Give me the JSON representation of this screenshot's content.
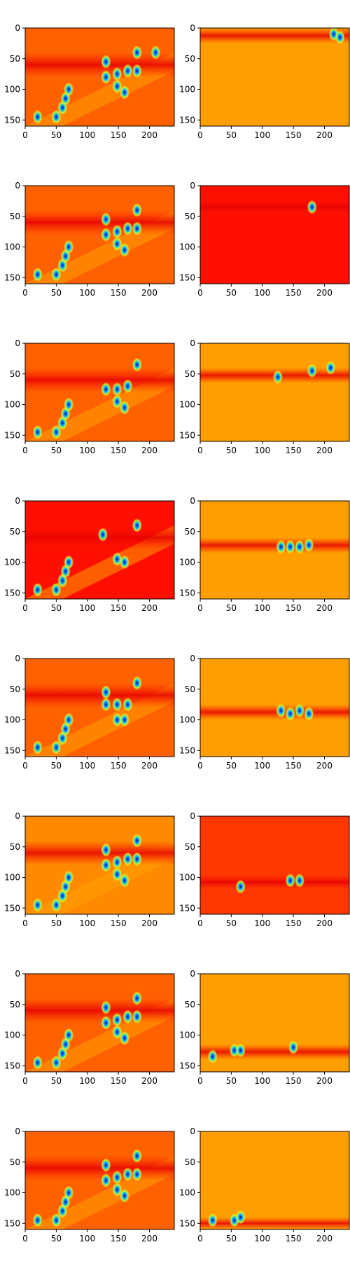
{
  "chart_data": {
    "type": "heatmap",
    "layout": {
      "rows": 8,
      "cols": 2
    },
    "colormap": "jet",
    "xlim": [
      0,
      240
    ],
    "ylim": [
      160,
      0
    ],
    "x_ticks": [
      0,
      50,
      100,
      150,
      200
    ],
    "y_ticks": [
      0,
      50,
      100,
      150
    ],
    "x_tick_labels": [
      "0",
      "50",
      "100",
      "150",
      "200"
    ],
    "y_tick_labels": [
      "0",
      "50",
      "100",
      "150"
    ],
    "grid": false,
    "panels": [
      {
        "row": 1,
        "col": 1,
        "background_level": 0.78,
        "band_y": [
          40,
          80
        ],
        "blobs": [
          [
            130,
            55
          ],
          [
            130,
            80
          ],
          [
            148,
            75
          ],
          [
            165,
            70
          ],
          [
            180,
            70
          ],
          [
            148,
            95
          ],
          [
            160,
            105
          ],
          [
            180,
            40
          ],
          [
            210,
            40
          ],
          [
            20,
            145
          ],
          [
            50,
            145
          ],
          [
            60,
            130
          ],
          [
            65,
            115
          ],
          [
            70,
            100
          ]
        ]
      },
      {
        "row": 1,
        "col": 2,
        "background_level": 0.72,
        "band_y": [
          0,
          25
        ],
        "blobs": [
          [
            215,
            10
          ],
          [
            225,
            15
          ]
        ]
      },
      {
        "row": 2,
        "col": 1,
        "background_level": 0.78,
        "band_y": [
          40,
          80
        ],
        "blobs": [
          [
            130,
            55
          ],
          [
            130,
            80
          ],
          [
            148,
            75
          ],
          [
            165,
            70
          ],
          [
            180,
            70
          ],
          [
            148,
            95
          ],
          [
            160,
            105
          ],
          [
            180,
            40
          ],
          [
            20,
            145
          ],
          [
            50,
            145
          ],
          [
            60,
            130
          ],
          [
            65,
            115
          ],
          [
            70,
            100
          ]
        ]
      },
      {
        "row": 2,
        "col": 2,
        "background_level": 0.86,
        "band_y": [
          20,
          50
        ],
        "blobs": [
          [
            180,
            35
          ]
        ]
      },
      {
        "row": 3,
        "col": 1,
        "background_level": 0.78,
        "band_y": [
          40,
          80
        ],
        "blobs": [
          [
            130,
            75
          ],
          [
            148,
            75
          ],
          [
            165,
            70
          ],
          [
            148,
            95
          ],
          [
            160,
            105
          ],
          [
            180,
            35
          ],
          [
            20,
            145
          ],
          [
            50,
            145
          ],
          [
            60,
            130
          ],
          [
            65,
            115
          ],
          [
            70,
            100
          ]
        ]
      },
      {
        "row": 3,
        "col": 2,
        "background_level": 0.72,
        "band_y": [
          40,
          65
        ],
        "blobs": [
          [
            125,
            55
          ],
          [
            180,
            45
          ],
          [
            210,
            40
          ]
        ]
      },
      {
        "row": 4,
        "col": 1,
        "background_level": 0.86,
        "band_y": [
          40,
          80
        ],
        "blobs": [
          [
            125,
            55
          ],
          [
            148,
            95
          ],
          [
            160,
            100
          ],
          [
            180,
            40
          ],
          [
            20,
            145
          ],
          [
            50,
            145
          ],
          [
            60,
            130
          ],
          [
            65,
            115
          ],
          [
            70,
            100
          ]
        ]
      },
      {
        "row": 4,
        "col": 2,
        "background_level": 0.72,
        "band_y": [
          60,
          85
        ],
        "blobs": [
          [
            130,
            75
          ],
          [
            145,
            75
          ],
          [
            160,
            75
          ],
          [
            175,
            72
          ]
        ]
      },
      {
        "row": 5,
        "col": 1,
        "background_level": 0.78,
        "band_y": [
          40,
          80
        ],
        "blobs": [
          [
            130,
            55
          ],
          [
            130,
            75
          ],
          [
            148,
            75
          ],
          [
            165,
            75
          ],
          [
            148,
            100
          ],
          [
            160,
            100
          ],
          [
            180,
            40
          ],
          [
            20,
            145
          ],
          [
            50,
            145
          ],
          [
            60,
            130
          ],
          [
            65,
            115
          ],
          [
            70,
            100
          ]
        ]
      },
      {
        "row": 5,
        "col": 2,
        "background_level": 0.72,
        "band_y": [
          75,
          100
        ],
        "blobs": [
          [
            130,
            85
          ],
          [
            145,
            90
          ],
          [
            160,
            85
          ],
          [
            175,
            90
          ]
        ]
      },
      {
        "row": 6,
        "col": 1,
        "background_level": 0.74,
        "band_y": [
          40,
          80
        ],
        "blobs": [
          [
            130,
            55
          ],
          [
            130,
            80
          ],
          [
            148,
            75
          ],
          [
            165,
            70
          ],
          [
            180,
            70
          ],
          [
            148,
            95
          ],
          [
            160,
            105
          ],
          [
            180,
            40
          ],
          [
            20,
            145
          ],
          [
            50,
            145
          ],
          [
            60,
            130
          ],
          [
            65,
            115
          ],
          [
            70,
            100
          ]
        ]
      },
      {
        "row": 6,
        "col": 2,
        "background_level": 0.82,
        "band_y": [
          95,
          120
        ],
        "blobs": [
          [
            65,
            115
          ],
          [
            145,
            105
          ],
          [
            160,
            105
          ]
        ]
      },
      {
        "row": 7,
        "col": 1,
        "background_level": 0.78,
        "band_y": [
          40,
          80
        ],
        "blobs": [
          [
            130,
            55
          ],
          [
            130,
            80
          ],
          [
            148,
            75
          ],
          [
            165,
            70
          ],
          [
            180,
            70
          ],
          [
            148,
            95
          ],
          [
            160,
            105
          ],
          [
            180,
            40
          ],
          [
            20,
            145
          ],
          [
            50,
            145
          ],
          [
            60,
            130
          ],
          [
            65,
            115
          ],
          [
            70,
            100
          ]
        ]
      },
      {
        "row": 7,
        "col": 2,
        "background_level": 0.72,
        "band_y": [
          115,
          140
        ],
        "blobs": [
          [
            20,
            135
          ],
          [
            55,
            125
          ],
          [
            65,
            125
          ],
          [
            150,
            120
          ]
        ]
      },
      {
        "row": 8,
        "col": 1,
        "background_level": 0.78,
        "band_y": [
          40,
          80
        ],
        "blobs": [
          [
            130,
            55
          ],
          [
            130,
            80
          ],
          [
            148,
            75
          ],
          [
            165,
            70
          ],
          [
            180,
            70
          ],
          [
            148,
            95
          ],
          [
            160,
            105
          ],
          [
            180,
            40
          ],
          [
            20,
            145
          ],
          [
            50,
            145
          ],
          [
            60,
            130
          ],
          [
            65,
            115
          ],
          [
            70,
            100
          ]
        ]
      },
      {
        "row": 8,
        "col": 2,
        "background_level": 0.72,
        "band_y": [
          140,
          160
        ],
        "blobs": [
          [
            20,
            145
          ],
          [
            55,
            145
          ],
          [
            65,
            140
          ]
        ]
      }
    ]
  }
}
